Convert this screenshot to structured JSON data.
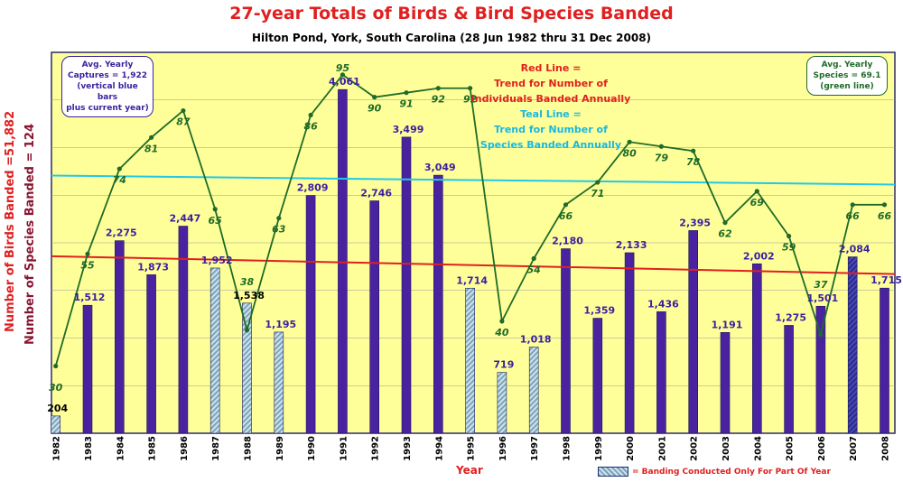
{
  "chart_data": {
    "type": "bar",
    "title": "27-year Totals of Birds & Bird Species Banded",
    "subtitle": "Hilton Pond, York, South Carolina (28 Jun 1982 thru 31 Dec 2008)",
    "xlabel": "Year",
    "ylabel_birds": "Number of Birds Banded =51,882",
    "ylabel_species": "Number of Species Banded = 124",
    "categories": [
      "1982",
      "1983",
      "1984",
      "1985",
      "1986",
      "1987",
      "1988",
      "1989",
      "1990",
      "1991",
      "1992",
      "1993",
      "1994",
      "1995",
      "1996",
      "1997",
      "1998",
      "1999",
      "2000",
      "2001",
      "2002",
      "2003",
      "2004",
      "2005",
      "2006",
      "2007",
      "2008"
    ],
    "series": [
      {
        "name": "Individuals Banded",
        "values": [
          204,
          1512,
          2275,
          1873,
          2447,
          1952,
          1538,
          1195,
          2809,
          4061,
          2746,
          3499,
          3049,
          1714,
          719,
          1018,
          2180,
          1359,
          2133,
          1436,
          2395,
          1191,
          2002,
          1275,
          1501,
          2084,
          1715
        ],
        "labels": [
          "204",
          "1,512",
          "2,275",
          "1,873",
          "2,447",
          "1,952",
          "1,538",
          "1,195",
          "2,809",
          "4,061",
          "2,746",
          "3,499",
          "3,049",
          "1,714",
          "719",
          "1,018",
          "2,180",
          "1,359",
          "2,133",
          "1,436",
          "2,395",
          "1,191",
          "2,002",
          "1,275",
          "1,501",
          "2,084",
          "1,715"
        ],
        "partial_year": [
          true,
          false,
          false,
          false,
          false,
          true,
          true,
          true,
          false,
          false,
          false,
          false,
          false,
          true,
          true,
          true,
          false,
          false,
          false,
          false,
          false,
          false,
          false,
          false,
          false,
          false,
          false
        ],
        "current_year": [
          false,
          false,
          false,
          false,
          false,
          false,
          false,
          false,
          false,
          false,
          false,
          false,
          false,
          false,
          false,
          false,
          false,
          false,
          false,
          false,
          false,
          false,
          false,
          false,
          false,
          true,
          false
        ]
      },
      {
        "name": "Species Banded",
        "values": [
          30,
          55,
          74,
          81,
          87,
          65,
          38,
          63,
          86,
          95,
          90,
          91,
          92,
          92,
          40,
          54,
          66,
          71,
          80,
          79,
          78,
          62,
          69,
          59,
          37,
          66,
          66
        ]
      }
    ],
    "bar_ylim": [
      0,
      4500
    ],
    "species_ylim": [
      15,
      100
    ],
    "trend_individuals": [
      2092,
      1881
    ],
    "trend_species": [
      72.5,
      70.5
    ],
    "grid": true,
    "colors": {
      "bar": "#4a22a0",
      "bar_current": "#2a2a8a",
      "hatch": "#7ba4bc",
      "species_line": "#1f6b28",
      "species_label": "#1f6b28",
      "trend_red": "#e02020",
      "trend_teal": "#22c8e8",
      "plot_bg": "#ffff99",
      "bar_label": "#3a1fa0"
    }
  },
  "annotations": {
    "avg_captures": [
      "Avg. Yearly",
      "Captures = 1,922",
      "(vertical blue bars",
      "plus current year)"
    ],
    "avg_species": [
      "Avg. Yearly",
      "Species = 69.1",
      "(green line)"
    ],
    "red_line": [
      "Red Line =",
      "Trend for Number of",
      "Individuals Banded Annually"
    ],
    "teal_line": [
      "Teal Line =",
      "Trend for Number of",
      "Species Banded Annually"
    ]
  },
  "legend": {
    "partial": "= Banding Conducted Only For Part Of Year"
  }
}
